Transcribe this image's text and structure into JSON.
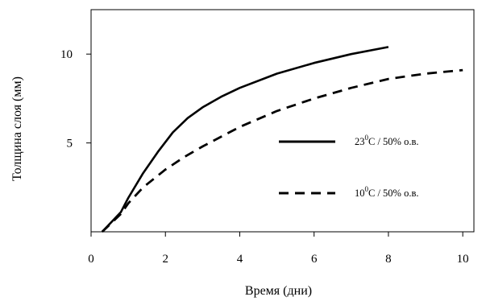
{
  "chart_data": {
    "type": "line",
    "title": "",
    "xlabel": "Время (дни)",
    "ylabel": "Толщина слоя (мм)",
    "xlim": [
      0,
      10.3
    ],
    "ylim": [
      0,
      12.5
    ],
    "x_ticks": [
      0,
      2,
      4,
      6,
      8,
      10
    ],
    "y_ticks": [
      5,
      10
    ],
    "grid": false,
    "legend_position": "right",
    "series": [
      {
        "name_parts": {
          "main": "23",
          "sup": "0",
          "rest": "C / 50% о.в."
        },
        "line_style": "solid",
        "color": "#000000",
        "x": [
          0.3,
          0.8,
          1.0,
          1.4,
          1.8,
          2.2,
          2.6,
          3.0,
          3.5,
          4.0,
          5.0,
          6.0,
          7.0,
          8.0
        ],
        "y": [
          0.0,
          1.1,
          1.9,
          3.3,
          4.5,
          5.6,
          6.4,
          7.0,
          7.6,
          8.1,
          8.9,
          9.5,
          10.0,
          10.4
        ]
      },
      {
        "name_parts": {
          "main": "10",
          "sup": "0",
          "rest": "C / 50% о.в."
        },
        "line_style": "dashed",
        "color": "#000000",
        "x": [
          0.3,
          0.8,
          1.0,
          1.4,
          2.0,
          2.5,
          3.0,
          4.0,
          5.0,
          6.0,
          7.0,
          8.0,
          9.0,
          10.0
        ],
        "y": [
          0.0,
          1.0,
          1.6,
          2.5,
          3.5,
          4.2,
          4.8,
          5.9,
          6.8,
          7.5,
          8.1,
          8.6,
          8.9,
          9.1
        ]
      }
    ]
  }
}
